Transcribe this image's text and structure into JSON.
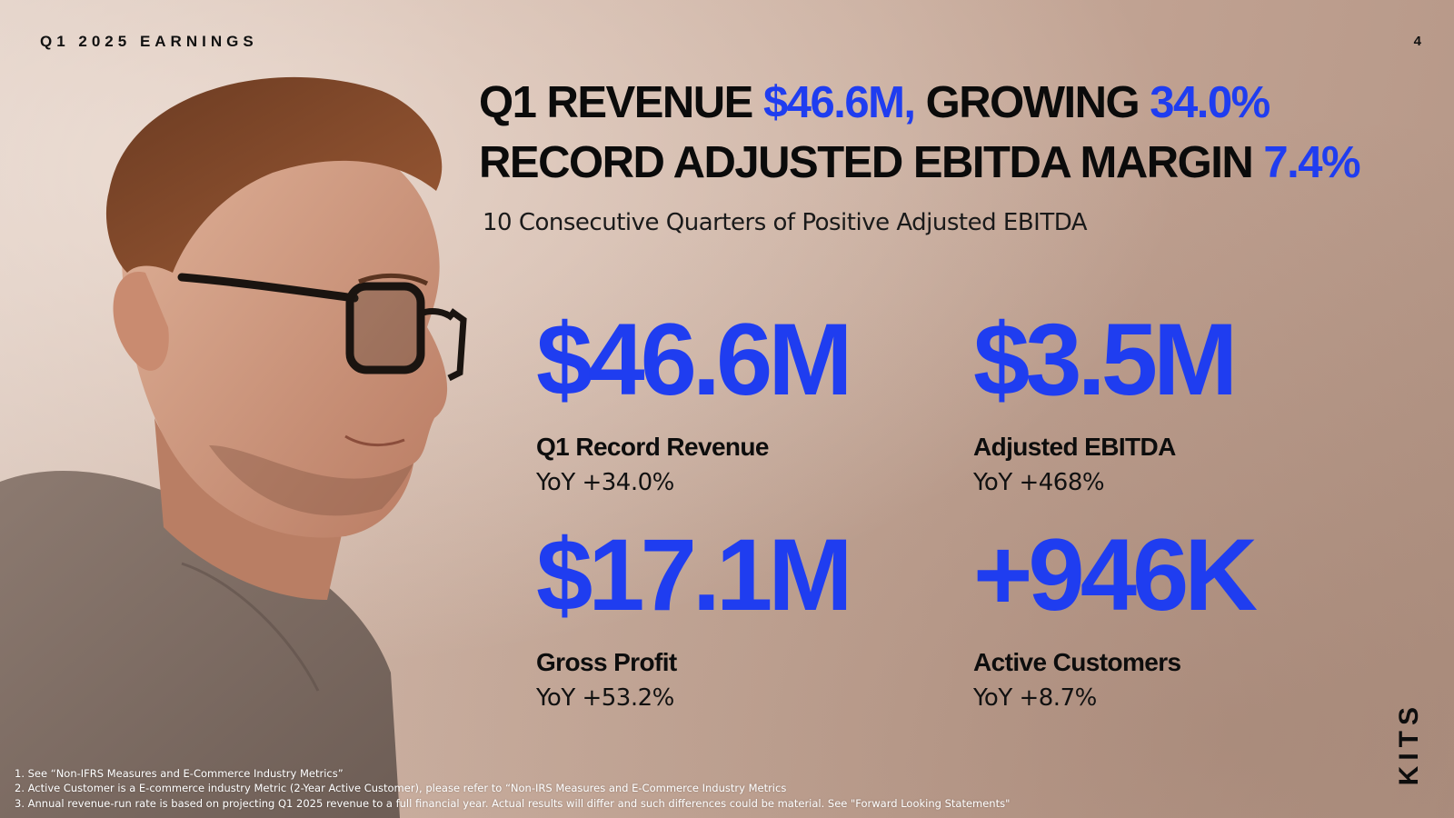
{
  "header": {
    "eyebrow": "Q1 2025 EARNINGS",
    "page_number": "4"
  },
  "headline": {
    "line1_prefix": "Q1 REVENUE ",
    "line1_accent1": "$46.6M,",
    "line1_middle": " GROWING ",
    "line1_accent2": "34.0%",
    "line2_prefix": "RECORD ADJUSTED EBITDA MARGIN ",
    "line2_accent": "7.4%"
  },
  "subhead": "10 Consecutive Quarters of Positive Adjusted EBITDA",
  "metrics": [
    {
      "value": "$46.6M",
      "label": "Q1 Record Revenue",
      "yoy": "YoY +34.0%"
    },
    {
      "value": "$3.5M",
      "label": "Adjusted EBITDA",
      "yoy": "YoY +468%"
    },
    {
      "value": "$17.1M",
      "label": "Gross Profit",
      "yoy": "YoY +53.2%"
    },
    {
      "value": "+946K",
      "label": "Active Customers",
      "yoy": "YoY +8.7%"
    }
  ],
  "brand": {
    "logo": "KITS"
  },
  "footnotes": [
    "1. See “Non-IFRS Measures and E-Commerce Industry Metrics”",
    "2. Active Customer is a E-commerce industry Metric (2-Year Active Customer), please refer to “Non-IRS Measures and E-Commerce Industry Metrics",
    "3. Annual revenue-run rate is based on projecting Q1 2025 revenue to a full financial year. Actual results will differ and such differences could be material. See \"Forward Looking Statements\""
  ],
  "colors": {
    "accent": "#1f3df0",
    "text": "#0b0b0b",
    "background": "#c6a999"
  },
  "icons": {
    "portrait": "man-with-glasses-photo"
  }
}
